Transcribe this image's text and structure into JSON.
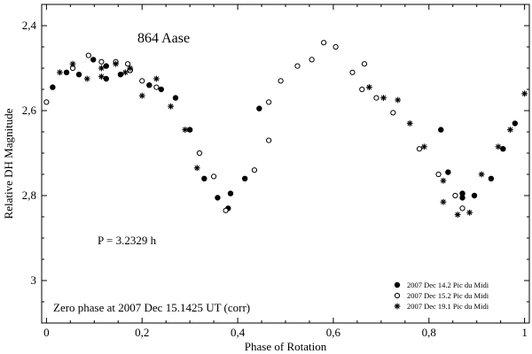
{
  "chart_data": {
    "type": "scatter",
    "title": "864 Aase",
    "xlabel": "Phase of Rotation",
    "ylabel": "Relative DH Magnitude",
    "xlim": [
      -0.01,
      1.01
    ],
    "ylim": [
      2.35,
      3.1
    ],
    "y_inverted": true,
    "x_ticks": [
      0,
      0.2,
      0.4,
      0.6,
      0.8,
      1
    ],
    "x_tick_labels": [
      "0",
      "0,2",
      "0,4",
      "0,6",
      "0,8",
      "1"
    ],
    "y_ticks": [
      2.4,
      2.6,
      2.8,
      3.0
    ],
    "y_tick_labels": [
      "2,4",
      "2,6",
      "2,8",
      "3"
    ],
    "grid": false,
    "legend_position": "bottom-right",
    "annotations": {
      "period": "P = 3.2329 h",
      "zero_phase": "Zero phase at 2007 Dec 15.1425 UT (corr)"
    },
    "series": [
      {
        "name": "2007 Dec 14.2 Pic du Midi",
        "marker": "filled-circle",
        "points": [
          [
            0.013,
            2.545
          ],
          [
            0.042,
            2.51
          ],
          [
            0.068,
            2.515
          ],
          [
            0.098,
            2.48
          ],
          [
            0.125,
            2.495
          ],
          [
            0.125,
            2.525
          ],
          [
            0.155,
            2.515
          ],
          [
            0.175,
            2.505
          ],
          [
            0.215,
            2.54
          ],
          [
            0.24,
            2.55
          ],
          [
            0.27,
            2.57
          ],
          [
            0.3,
            2.645
          ],
          [
            0.33,
            2.76
          ],
          [
            0.358,
            2.805
          ],
          [
            0.38,
            2.83
          ],
          [
            0.385,
            2.795
          ],
          [
            0.415,
            2.76
          ],
          [
            0.445,
            2.595
          ],
          [
            0.825,
            2.645
          ],
          [
            0.84,
            2.745
          ],
          [
            0.87,
            2.795
          ],
          [
            0.87,
            2.805
          ],
          [
            0.895,
            2.8
          ],
          [
            0.93,
            2.76
          ],
          [
            0.955,
            2.69
          ],
          [
            0.98,
            2.63
          ]
        ]
      },
      {
        "name": "2007 Dec 15.2 Pic du Midi",
        "marker": "open-circle",
        "points": [
          [
            0.0,
            2.58
          ],
          [
            0.055,
            2.5
          ],
          [
            0.088,
            2.47
          ],
          [
            0.115,
            2.485
          ],
          [
            0.145,
            2.485
          ],
          [
            0.17,
            2.49
          ],
          [
            0.175,
            2.505
          ],
          [
            0.2,
            2.53
          ],
          [
            0.23,
            2.545
          ],
          [
            0.32,
            2.7
          ],
          [
            0.35,
            2.755
          ],
          [
            0.375,
            2.835
          ],
          [
            0.435,
            2.74
          ],
          [
            0.465,
            2.58
          ],
          [
            0.465,
            2.67
          ],
          [
            0.49,
            2.53
          ],
          [
            0.525,
            2.495
          ],
          [
            0.555,
            2.48
          ],
          [
            0.58,
            2.44
          ],
          [
            0.605,
            2.45
          ],
          [
            0.64,
            2.51
          ],
          [
            0.66,
            2.55
          ],
          [
            0.665,
            2.49
          ],
          [
            0.69,
            2.57
          ],
          [
            0.725,
            2.605
          ],
          [
            0.78,
            2.69
          ],
          [
            0.82,
            2.75
          ],
          [
            0.855,
            2.8
          ],
          [
            0.87,
            2.83
          ]
        ]
      },
      {
        "name": "2007 Dec 19.1  Pic du Midi",
        "marker": "asterisk",
        "points": [
          [
            0.028,
            2.51
          ],
          [
            0.055,
            2.49
          ],
          [
            0.085,
            2.525
          ],
          [
            0.115,
            2.5
          ],
          [
            0.115,
            2.52
          ],
          [
            0.145,
            2.49
          ],
          [
            0.165,
            2.51
          ],
          [
            0.175,
            2.5
          ],
          [
            0.2,
            2.565
          ],
          [
            0.23,
            2.525
          ],
          [
            0.26,
            2.59
          ],
          [
            0.29,
            2.645
          ],
          [
            0.315,
            2.735
          ],
          [
            0.675,
            2.545
          ],
          [
            0.705,
            2.57
          ],
          [
            0.735,
            2.575
          ],
          [
            0.76,
            2.63
          ],
          [
            0.79,
            2.685
          ],
          [
            0.83,
            2.765
          ],
          [
            0.83,
            2.815
          ],
          [
            0.86,
            2.845
          ],
          [
            0.885,
            2.84
          ],
          [
            0.91,
            2.75
          ],
          [
            0.945,
            2.685
          ],
          [
            0.97,
            2.645
          ],
          [
            1.0,
            2.56
          ]
        ]
      }
    ]
  }
}
